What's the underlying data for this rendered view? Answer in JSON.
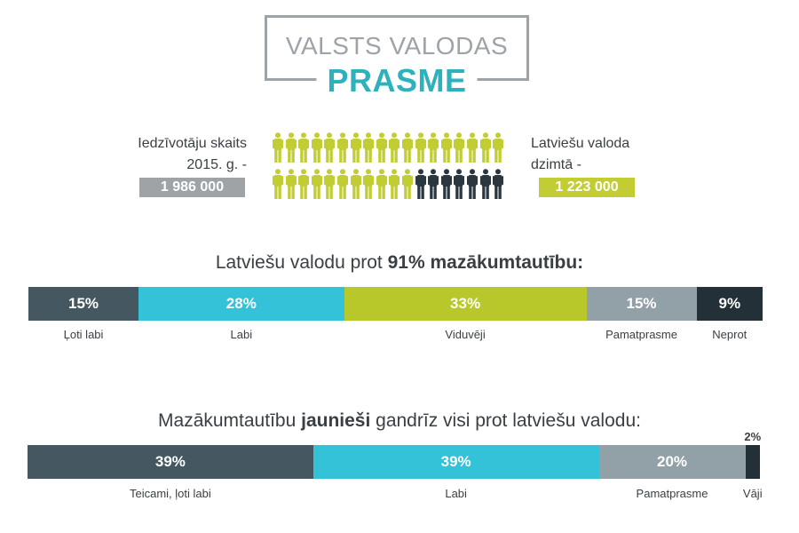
{
  "header": {
    "title_line1": "VALSTS VALODAS",
    "title_line2": "PRASME"
  },
  "stats": {
    "left_label_line1": "Iedzīvotāju skaits",
    "left_label_line2": "2015. g. -",
    "left_value": "1 986 000",
    "right_label_line1": "Latviešu valoda",
    "right_label_line2": "dzimtā -",
    "right_value": "1 223 000"
  },
  "colors": {
    "slate": "#455862",
    "cyan": "#33c2d8",
    "lime": "#b8c82a",
    "gray": "#92a0a8",
    "dark": "#243038",
    "green_person": "#c1cd32",
    "dark_person": "#2a3640",
    "title_gray": "#9ea3a8",
    "title_teal": "#2fb0bd"
  },
  "pictogram": {
    "rows": 2,
    "per_row": 18,
    "total": 36,
    "dark_count": 7
  },
  "section1": {
    "title_pre": "Latviešu valodu prot ",
    "title_pct": "91%",
    "title_bold": "mazākumtautību:"
  },
  "section2": {
    "title_pre": "Mazākumtautību ",
    "title_bold": "jaunieši",
    "title_post": " gandrīz visi prot latviešu valodu:"
  },
  "chart_data": [
    {
      "type": "bar",
      "stacked": true,
      "orientation": "horizontal",
      "title": "Latviešu valodu prot 91% mazākumtautību:",
      "categories": [
        "Ļoti labi",
        "Labi",
        "Viduvēji",
        "Pamatprasme",
        "Neprot"
      ],
      "values": [
        15,
        28,
        33,
        15,
        9
      ],
      "labels": [
        "15%",
        "28%",
        "33%",
        "15%",
        "9%"
      ],
      "colors": [
        "#455862",
        "#33c2d8",
        "#b8c82a",
        "#92a0a8",
        "#243038"
      ],
      "unit": "%"
    },
    {
      "type": "bar",
      "stacked": true,
      "orientation": "horizontal",
      "title": "Mazākumtautību jaunieši gandrīz visi prot latviešu valodu:",
      "categories": [
        "Teicami, ļoti labi",
        "Labi",
        "Pamatprasme",
        "Vāji"
      ],
      "values": [
        39,
        39,
        20,
        2
      ],
      "labels": [
        "39%",
        "39%",
        "20%",
        "2%"
      ],
      "colors": [
        "#455862",
        "#33c2d8",
        "#92a0a8",
        "#243038"
      ],
      "unit": "%"
    }
  ]
}
